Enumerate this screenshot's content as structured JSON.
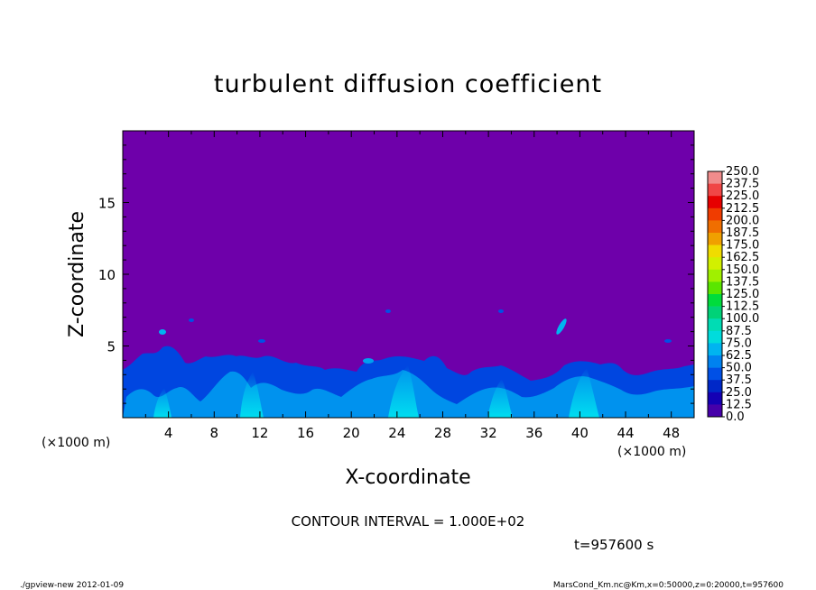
{
  "chart_data": {
    "type": "heatmap",
    "title": "turbulent diffusion coefficient",
    "xlabel": "X-coordinate",
    "ylabel": "Z-coordinate",
    "x_unit_left": "(×1000 m)",
    "x_unit_right": "(×1000 m)",
    "xlim": [
      0,
      50
    ],
    "ylim": [
      0,
      20
    ],
    "xticks": [
      4,
      8,
      12,
      16,
      20,
      24,
      28,
      32,
      36,
      40,
      44,
      48
    ],
    "yticks": [
      5,
      10,
      15
    ],
    "contour_interval_text": "CONTOUR INTERVAL = 1.000E+02",
    "time_text": "t=957600 s",
    "colorbar": {
      "levels": [
        "250.0",
        "237.5",
        "225.0",
        "212.5",
        "200.0",
        "187.5",
        "175.0",
        "162.5",
        "150.0",
        "137.5",
        "125.0",
        "112.5",
        "100.0",
        "87.5",
        "75.0",
        "62.5",
        "50.0",
        "37.5",
        "25.0",
        "12.5",
        "0.0"
      ],
      "colors": [
        "#f08c8c",
        "#f04646",
        "#e60000",
        "#f03c00",
        "#f06e00",
        "#f0a000",
        "#f0dc00",
        "#d2f000",
        "#a0f000",
        "#5ae600",
        "#00dc3c",
        "#00d278",
        "#00dcb4",
        "#00dcdc",
        "#00b4f0",
        "#0082f0",
        "#0050e6",
        "#0028c8",
        "#1400b4",
        "#4600aa"
      ],
      "background": "#6e00aa"
    },
    "field_note_colors": {
      "low": "#6e00aa",
      "mid": "#0050e6",
      "high": "#00c8f0",
      "peak": "#40ffc0"
    }
  },
  "footer": {
    "left": "./gpview-new   2012-01-09",
    "right": "MarsCond_Km.nc@Km,x=0:50000,z=0:20000,t=957600"
  }
}
